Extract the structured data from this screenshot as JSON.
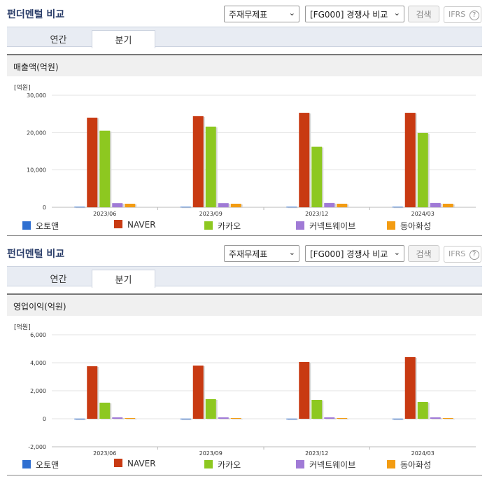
{
  "section1": {
    "title": "펀더멘털 비교",
    "select1": "주재무제표",
    "select2": "[FG000] 경쟁사 비교",
    "search_label": "검색",
    "ifrs_label": "IFRS",
    "tabs": [
      {
        "label": "연간"
      },
      {
        "label": "분기"
      }
    ],
    "active_tab": "분기",
    "metric_label": "매출액(억원)",
    "unit_label": "[억원]"
  },
  "section2": {
    "title": "펀더멘털 비교",
    "select1": "주재무제표",
    "select2": "[FG000] 경쟁사 비교",
    "search_label": "검색",
    "ifrs_label": "IFRS",
    "tabs": [
      {
        "label": "연간"
      },
      {
        "label": "분기"
      }
    ],
    "active_tab": "분기",
    "metric_label": "영업이익(억원)",
    "unit_label": "[억원]"
  },
  "chart_data": [
    {
      "type": "bar",
      "categories": [
        "2023/06",
        "2023/09",
        "2023/12",
        "2024/03"
      ],
      "ylim": [
        0,
        30000
      ],
      "yticks": [
        0,
        10000,
        20000,
        30000
      ],
      "ytick_labels": [
        "0",
        "10,000",
        "20,000",
        "30,000"
      ],
      "grid": true,
      "legend_position": "bottom",
      "series": [
        {
          "name": "오토앤",
          "color": "#2f6fd1",
          "values": [
            150,
            150,
            150,
            150
          ]
        },
        {
          "name": "NAVER",
          "color": "#c83a12",
          "values": [
            24000,
            24400,
            25300,
            25300
          ]
        },
        {
          "name": "카카오",
          "color": "#8dc820",
          "values": [
            20500,
            21600,
            16200,
            19900
          ]
        },
        {
          "name": "커넥트웨이브",
          "color": "#a07ad6",
          "values": [
            1100,
            1100,
            1150,
            1150
          ]
        },
        {
          "name": "동아화성",
          "color": "#f39c12",
          "values": [
            950,
            950,
            950,
            950
          ]
        }
      ]
    },
    {
      "type": "bar",
      "categories": [
        "2023/06",
        "2023/09",
        "2023/12",
        "2024/03"
      ],
      "ylim": [
        -2000,
        6000
      ],
      "yticks": [
        -2000,
        0,
        2000,
        4000,
        6000
      ],
      "ytick_labels": [
        "-2,000",
        "0",
        "2,000",
        "4,000",
        "6,000"
      ],
      "grid": true,
      "legend_position": "bottom",
      "series": [
        {
          "name": "오토앤",
          "color": "#2f6fd1",
          "values": [
            10,
            10,
            10,
            10
          ]
        },
        {
          "name": "NAVER",
          "color": "#c83a12",
          "values": [
            3750,
            3800,
            4050,
            4400
          ]
        },
        {
          "name": "카카오",
          "color": "#8dc820",
          "values": [
            1150,
            1400,
            1350,
            1200
          ]
        },
        {
          "name": "커넥트웨이브",
          "color": "#a07ad6",
          "values": [
            100,
            100,
            100,
            100
          ]
        },
        {
          "name": "동아화성",
          "color": "#f39c12",
          "values": [
            50,
            50,
            50,
            50
          ]
        }
      ]
    }
  ]
}
